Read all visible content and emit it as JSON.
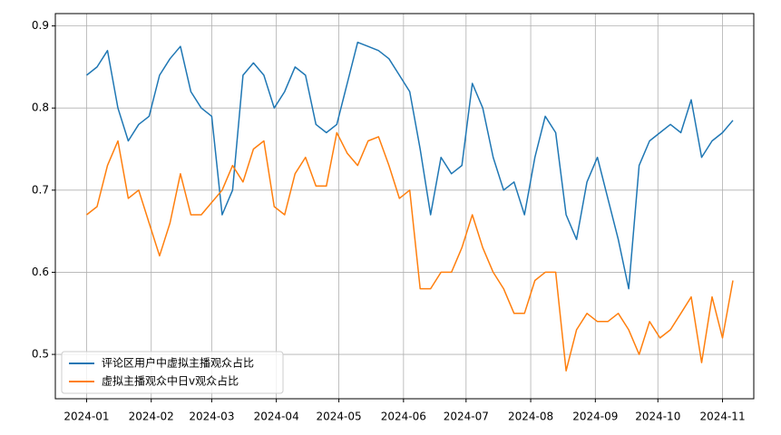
{
  "chart_data": {
    "type": "line",
    "x": [
      "2024-01-01",
      "2024-01-06",
      "2024-01-11",
      "2024-01-16",
      "2024-01-21",
      "2024-01-26",
      "2024-01-31",
      "2024-02-05",
      "2024-02-10",
      "2024-02-15",
      "2024-02-20",
      "2024-02-25",
      "2024-03-01",
      "2024-03-06",
      "2024-03-11",
      "2024-03-16",
      "2024-03-21",
      "2024-03-26",
      "2024-03-31",
      "2024-04-05",
      "2024-04-10",
      "2024-04-15",
      "2024-04-20",
      "2024-04-25",
      "2024-04-30",
      "2024-05-05",
      "2024-05-10",
      "2024-05-15",
      "2024-05-20",
      "2024-05-25",
      "2024-05-30",
      "2024-06-04",
      "2024-06-09",
      "2024-06-14",
      "2024-06-19",
      "2024-06-24",
      "2024-06-29",
      "2024-07-04",
      "2024-07-09",
      "2024-07-14",
      "2024-07-19",
      "2024-07-24",
      "2024-07-29",
      "2024-08-03",
      "2024-08-08",
      "2024-08-13",
      "2024-08-18",
      "2024-08-23",
      "2024-08-28",
      "2024-09-02",
      "2024-09-07",
      "2024-09-12",
      "2024-09-17",
      "2024-09-22",
      "2024-09-27",
      "2024-10-02",
      "2024-10-07",
      "2024-10-12",
      "2024-10-17",
      "2024-10-22",
      "2024-10-27",
      "2024-11-01",
      "2024-11-06"
    ],
    "series": [
      {
        "name": "评论区用户中虚拟主播观众占比",
        "color": "#1f77b4",
        "values": [
          0.84,
          0.85,
          0.87,
          0.8,
          0.76,
          0.78,
          0.79,
          0.84,
          0.86,
          0.875,
          0.82,
          0.8,
          0.79,
          0.67,
          0.7,
          0.84,
          0.855,
          0.84,
          0.8,
          0.82,
          0.85,
          0.84,
          0.78,
          0.77,
          0.78,
          0.83,
          0.88,
          0.875,
          0.87,
          0.86,
          0.84,
          0.82,
          0.75,
          0.67,
          0.74,
          0.72,
          0.73,
          0.83,
          0.8,
          0.74,
          0.7,
          0.71,
          0.67,
          0.74,
          0.79,
          0.77,
          0.67,
          0.64,
          0.71,
          0.74,
          0.69,
          0.64,
          0.58,
          0.73,
          0.76,
          0.77,
          0.78,
          0.77,
          0.81,
          0.74,
          0.76,
          0.77,
          0.785
        ]
      },
      {
        "name": "虚拟主播观众中日v观众占比",
        "color": "#ff7f0e",
        "values": [
          0.67,
          0.68,
          0.73,
          0.76,
          0.69,
          0.7,
          0.66,
          0.62,
          0.66,
          0.72,
          0.67,
          0.67,
          0.685,
          0.7,
          0.73,
          0.71,
          0.75,
          0.76,
          0.68,
          0.67,
          0.72,
          0.74,
          0.705,
          0.705,
          0.77,
          0.745,
          0.73,
          0.76,
          0.765,
          0.73,
          0.69,
          0.7,
          0.58,
          0.58,
          0.6,
          0.6,
          0.63,
          0.67,
          0.63,
          0.6,
          0.58,
          0.55,
          0.55,
          0.59,
          0.6,
          0.6,
          0.48,
          0.53,
          0.55,
          0.54,
          0.54,
          0.55,
          0.53,
          0.5,
          0.54,
          0.52,
          0.53,
          0.55,
          0.57,
          0.49,
          0.57,
          0.52,
          0.59
        ]
      }
    ],
    "xlim": [
      "2023-12-17",
      "2024-11-16"
    ],
    "xticks": [
      "2024-01",
      "2024-02",
      "2024-03",
      "2024-04",
      "2024-05",
      "2024-06",
      "2024-07",
      "2024-08",
      "2024-09",
      "2024-10",
      "2024-11"
    ],
    "ylim": [
      0.446,
      0.915
    ],
    "yticks": [
      0.5,
      0.6,
      0.7,
      0.8,
      0.9
    ],
    "grid": true,
    "legend": "lower left"
  }
}
